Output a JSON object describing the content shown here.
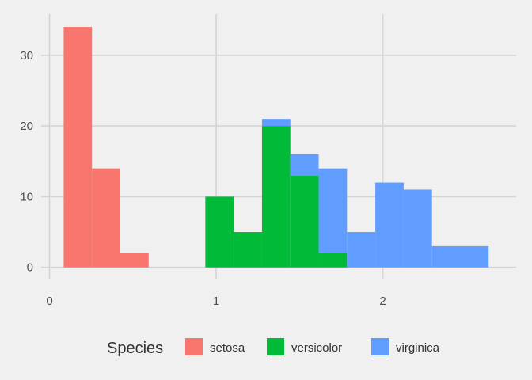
{
  "chart_data": {
    "type": "histogram",
    "stacked": true,
    "bin_width": 0.17,
    "bin_starts": [
      0.085,
      0.255,
      0.425,
      0.595,
      0.765,
      0.935,
      1.105,
      1.275,
      1.445,
      1.615,
      1.785,
      1.955,
      2.125,
      2.295,
      2.465
    ],
    "series": [
      {
        "name": "setosa",
        "color": "#F8766D",
        "counts": [
          34,
          14,
          2,
          0,
          0,
          0,
          0,
          0,
          0,
          0,
          0,
          0,
          0,
          0,
          0
        ]
      },
      {
        "name": "versicolor",
        "color": "#00BA38",
        "counts": [
          0,
          0,
          0,
          0,
          0,
          10,
          5,
          20,
          13,
          2,
          0,
          0,
          0,
          0,
          0
        ]
      },
      {
        "name": "virginica",
        "color": "#619CFF",
        "counts": [
          0,
          0,
          0,
          0,
          0,
          0,
          0,
          1,
          3,
          12,
          5,
          12,
          11,
          3,
          3
        ]
      }
    ],
    "xlim": [
      -0.05,
      2.8
    ],
    "ylim": [
      -1.6,
      35.8
    ],
    "x_ticks": [
      0,
      1,
      2
    ],
    "x_tick_labels": [
      "0",
      "1",
      "2"
    ],
    "y_ticks": [
      0,
      10,
      20,
      30
    ],
    "y_tick_labels": [
      "0",
      "10",
      "20",
      "30"
    ],
    "grid": true,
    "grid_color": "#d4d4d4",
    "background": "#f0f0f0",
    "legend": {
      "title": "Species",
      "position": "bottom"
    }
  }
}
